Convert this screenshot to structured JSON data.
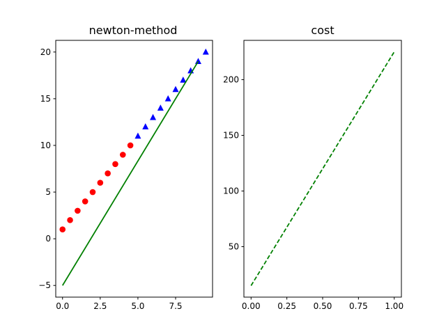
{
  "figure": {
    "background": "#ffffff"
  },
  "chart_data": [
    {
      "type": "scatter+line",
      "title": "newton-method",
      "xlabel": "",
      "ylabel": "",
      "xlim": [
        -0.45,
        9.95
      ],
      "ylim": [
        -6.25,
        21.25
      ],
      "xticks": [
        0,
        2.5,
        5,
        7.5
      ],
      "xtick_labels": [
        "0.0",
        "2.5",
        "5.0",
        "7.5"
      ],
      "yticks": [
        -5,
        0,
        5,
        10,
        15,
        20
      ],
      "ytick_labels": [
        "−5",
        "0",
        "5",
        "10",
        "15",
        "20"
      ],
      "grid": false,
      "legend": null,
      "series": [
        {
          "kind": "scatter",
          "marker": "circle",
          "color": "#ff0000",
          "x": [
            0,
            0.5,
            1,
            1.5,
            2,
            2.5,
            3,
            3.5,
            4,
            4.5
          ],
          "y": [
            1,
            2,
            3,
            4,
            5,
            6,
            7,
            8,
            9,
            10
          ]
        },
        {
          "kind": "scatter",
          "marker": "triangle-up",
          "color": "#0000ff",
          "x": [
            5,
            5.5,
            6,
            6.5,
            7,
            7.5,
            8,
            8.5,
            9,
            9.5
          ],
          "y": [
            11,
            12,
            13,
            14,
            15,
            16,
            17,
            18,
            19,
            20
          ]
        },
        {
          "kind": "line",
          "style": "solid",
          "color": "#008000",
          "x": [
            0,
            9
          ],
          "y": [
            -5,
            19
          ]
        }
      ]
    },
    {
      "type": "line",
      "title": "cost",
      "xlabel": "",
      "ylabel": "",
      "xlim": [
        -0.05,
        1.05
      ],
      "ylim": [
        4.7,
        235.3
      ],
      "xticks": [
        0,
        0.25,
        0.5,
        0.75,
        1
      ],
      "xtick_labels": [
        "0.00",
        "0.25",
        "0.50",
        "0.75",
        "1.00"
      ],
      "yticks": [
        50,
        100,
        150,
        200
      ],
      "ytick_labels": [
        "50",
        "100",
        "150",
        "200"
      ],
      "grid": false,
      "legend": null,
      "series": [
        {
          "kind": "line",
          "style": "dashed",
          "color": "#008000",
          "x": [
            0,
            1
          ],
          "y": [
            15,
            225
          ]
        }
      ]
    }
  ]
}
